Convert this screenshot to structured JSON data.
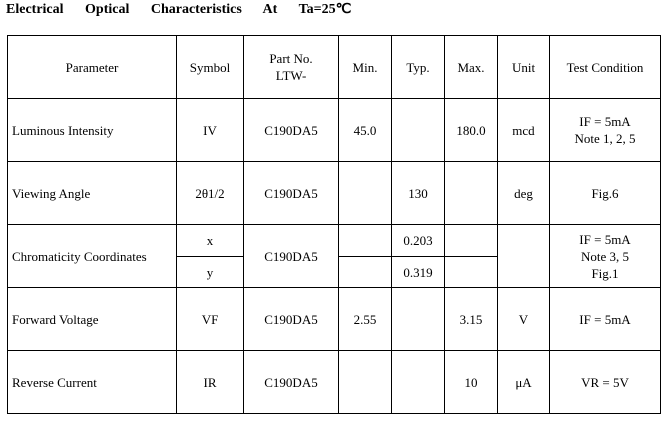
{
  "title": "Electrical Optical Characteristics At Ta=25℃",
  "table": {
    "header": [
      "Parameter",
      "Symbol",
      [
        "Part No.",
        "LTW-"
      ],
      "Min.",
      "Typ.",
      "Max.",
      "Unit",
      "Test Condition"
    ],
    "rows": [
      {
        "parameter": "Luminous Intensity",
        "symbol": "IV",
        "part_no": "C190DA5",
        "min": "45.0",
        "max": "180.0",
        "unit": "mcd",
        "test_condition": [
          "IF = 5mA",
          "Note 1, 2, 5"
        ]
      },
      {
        "parameter": "Viewing Angle",
        "symbol": "2θ1/2",
        "part_no": "C190DA5",
        "typ": "130",
        "unit": "deg",
        "test_condition": [
          "Fig.6"
        ]
      },
      {
        "parameter": "Chromaticity Coordinates",
        "symbol": [
          "x",
          "y"
        ],
        "part_no": "C190DA5",
        "typ": [
          "0.203",
          "0.319"
        ],
        "test_condition": [
          "IF = 5mA",
          "Note 3, 5",
          "Fig.1"
        ]
      },
      {
        "parameter": "Forward Voltage",
        "symbol": "VF",
        "part_no": "C190DA5",
        "min": "2.55",
        "max": "3.15",
        "unit": "V",
        "test_condition": [
          "IF = 5mA"
        ]
      },
      {
        "parameter": "Reverse Current",
        "symbol": "IR",
        "part_no": "C190DA5",
        "max": "10",
        "unit": "μA",
        "test_condition": [
          "VR = 5V"
        ]
      }
    ]
  }
}
